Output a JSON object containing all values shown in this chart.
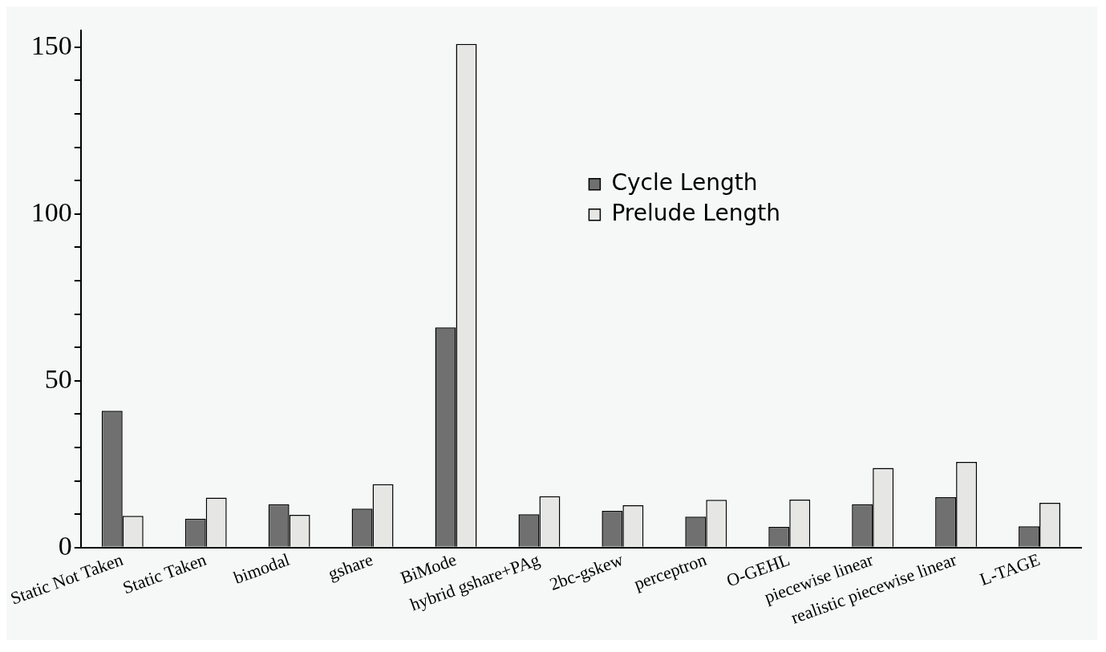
{
  "chart_data": {
    "type": "bar",
    "categories": [
      "Static Not Taken",
      "Static Taken",
      "bimodal",
      "gshare",
      "BiMode",
      "hybrid gshare+PAg",
      "2bc-gskew",
      "perceptron",
      "O-GEHL",
      "piecewise linear",
      "realistic piecewise linear",
      "L-TAGE"
    ],
    "series": [
      {
        "name": "Cycle Length",
        "color": "#707070",
        "values": [
          41,
          8.7,
          13,
          11.7,
          66,
          10,
          11,
          9.3,
          6.2,
          13,
          15.1,
          6.4
        ]
      },
      {
        "name": "Prelude Length",
        "color": "#e6e6e4",
        "values": [
          9.5,
          15,
          9.8,
          19,
          151,
          15.4,
          12.7,
          14.3,
          14.4,
          23.9,
          25.7,
          13.4
        ]
      }
    ],
    "ylim": [
      0,
      155
    ],
    "yticks": [
      0,
      {
        "value": 10,
        "label": null
      },
      {
        "value": 20,
        "label": null
      },
      {
        "value": 30,
        "label": null
      },
      {
        "value": 40,
        "label": null
      },
      50,
      {
        "value": 60,
        "label": null
      },
      {
        "value": 70,
        "label": null
      },
      {
        "value": 80,
        "label": null
      },
      {
        "value": 90,
        "label": null
      },
      100,
      {
        "value": 110,
        "label": null
      },
      {
        "value": 120,
        "label": null
      },
      {
        "value": 130,
        "label": null
      },
      {
        "value": 140,
        "label": null
      },
      150
    ],
    "grid": false,
    "legend": "top right"
  }
}
